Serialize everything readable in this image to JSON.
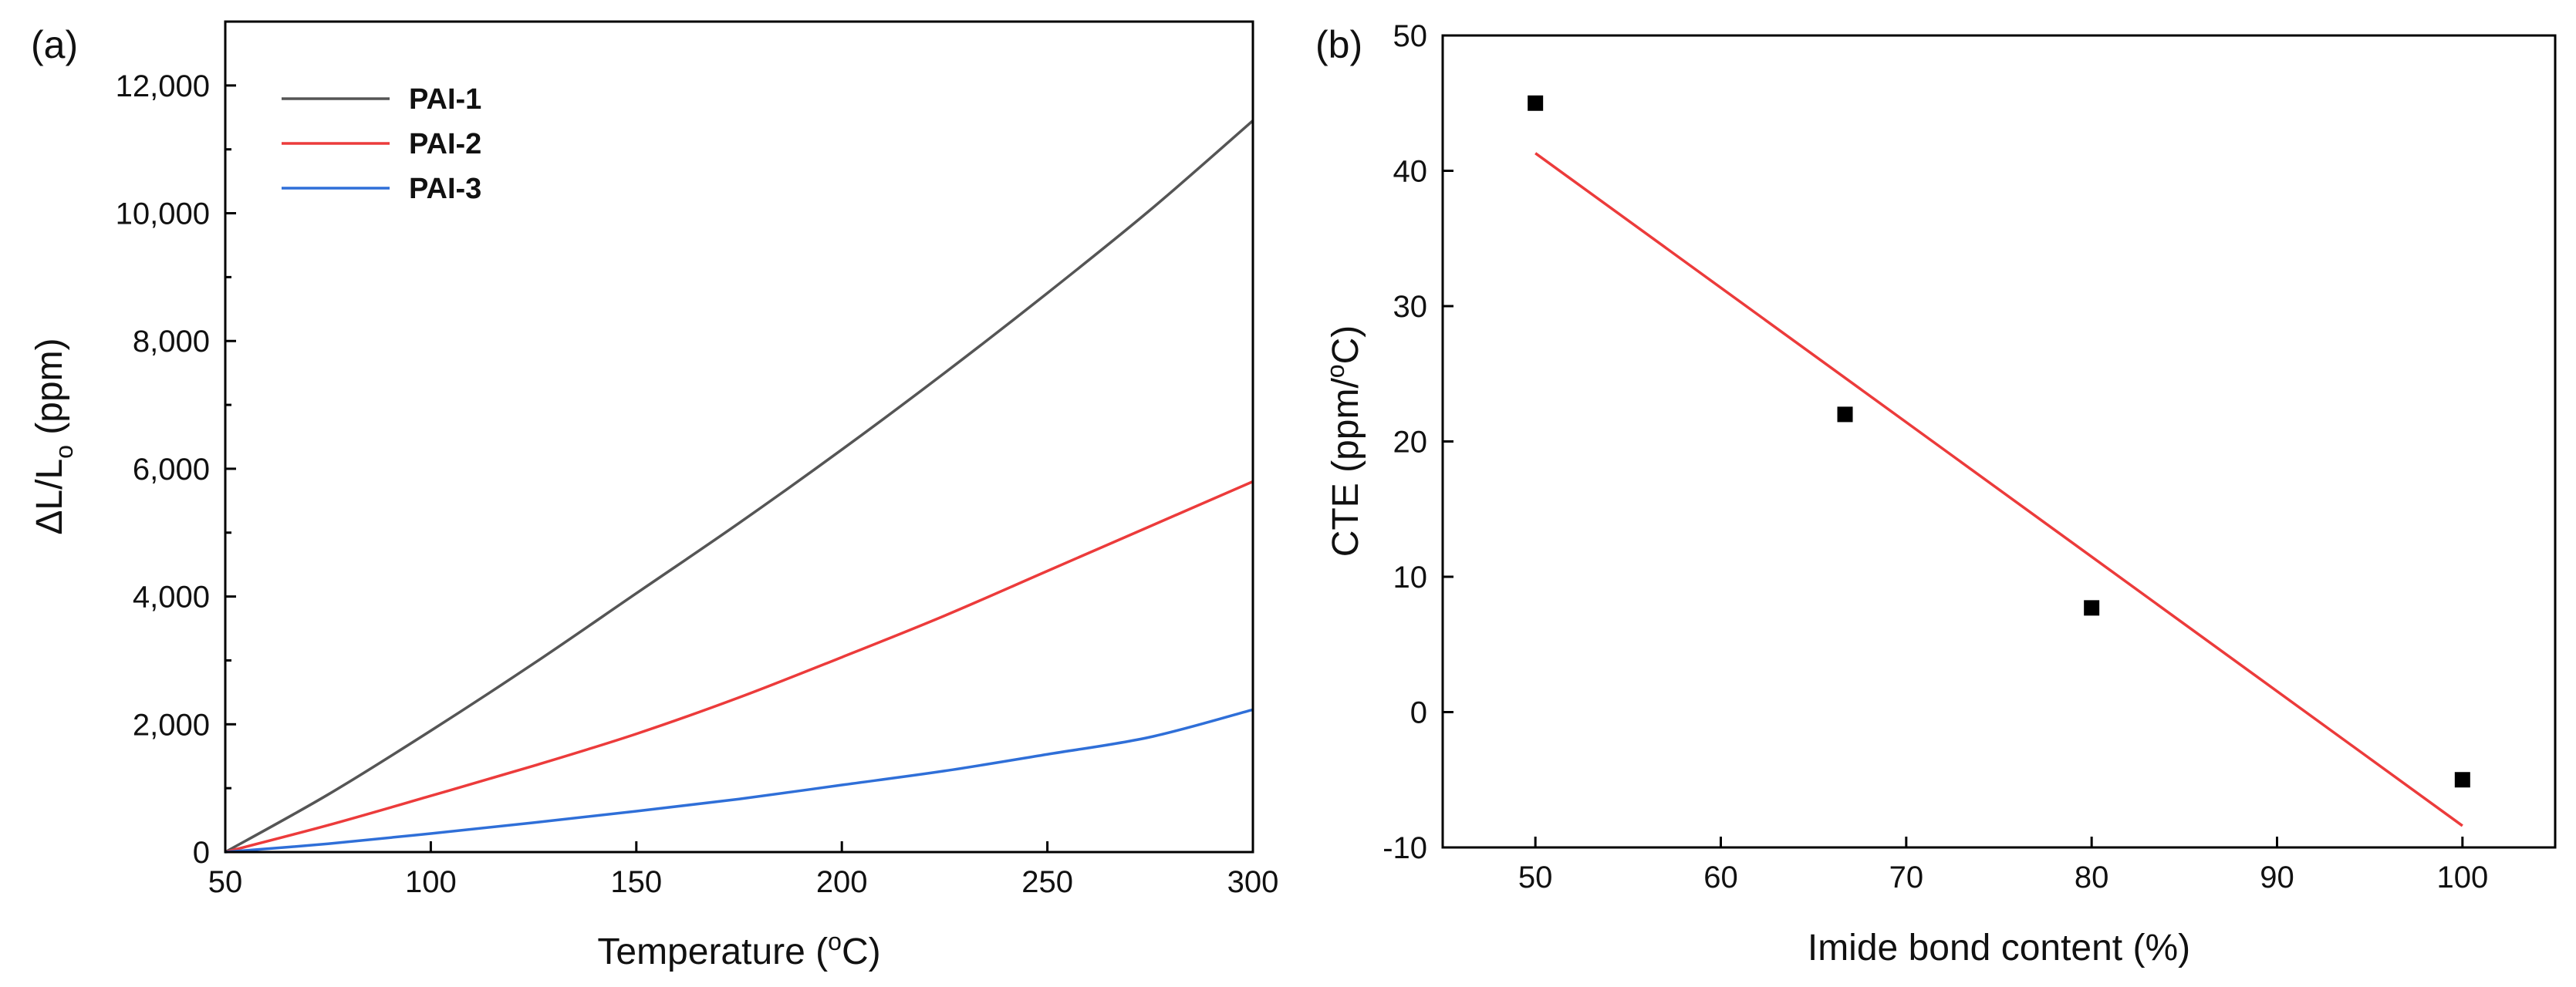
{
  "chart_data": [
    {
      "panel_label": "(a)",
      "type": "line",
      "xlabel_main": "Temperature (",
      "xlabel_sup": "o",
      "xlabel_end": "C)",
      "ylabel_pre": "ΔL/L",
      "ylabel_sub": "o",
      "ylabel_post": " (ppm)",
      "xlim": [
        50,
        300
      ],
      "ylim": [
        0,
        13000
      ],
      "xticks": [
        50,
        100,
        150,
        200,
        250,
        300
      ],
      "xtick_labels": [
        "50",
        "100",
        "150",
        "200",
        "250",
        "300"
      ],
      "yticks": [
        0,
        2000,
        4000,
        6000,
        8000,
        10000,
        12000
      ],
      "ytick_labels": [
        "0",
        "2,000",
        "4,000",
        "6,000",
        "8,000",
        "10,000",
        "12,000"
      ],
      "legend_position": "top-left",
      "x": [
        50,
        75,
        100,
        125,
        150,
        175,
        200,
        225,
        250,
        275,
        300
      ],
      "series": [
        {
          "name": "PAI-1",
          "color": "#555555",
          "values": [
            0,
            900,
            1900,
            2950,
            4050,
            5150,
            6300,
            7500,
            8750,
            10050,
            11450
          ]
        },
        {
          "name": "PAI-2",
          "color": "#ec3b3b",
          "values": [
            0,
            420,
            880,
            1350,
            1850,
            2420,
            3050,
            3700,
            4400,
            5100,
            5800
          ]
        },
        {
          "name": "PAI-3",
          "color": "#2f6fd8",
          "values": [
            0,
            130,
            290,
            460,
            640,
            830,
            1050,
            1270,
            1530,
            1800,
            2230
          ]
        }
      ]
    },
    {
      "panel_label": "(b)",
      "type": "scatter",
      "xlabel": "Imide bond content (%)",
      "ylabel_pre": "CTE (ppm/",
      "ylabel_sup": "o",
      "ylabel_post": "C)",
      "xlim": [
        45,
        105
      ],
      "ylim": [
        -10,
        50
      ],
      "xticks": [
        50,
        60,
        70,
        80,
        90,
        100
      ],
      "xtick_labels": [
        "50",
        "60",
        "70",
        "80",
        "90",
        "100"
      ],
      "yticks": [
        -10,
        0,
        10,
        20,
        30,
        40,
        50
      ],
      "ytick_labels": [
        "-10",
        "0",
        "10",
        "20",
        "30",
        "40",
        "50"
      ],
      "points": {
        "x": [
          50,
          66.7,
          80,
          100
        ],
        "y": [
          45,
          22,
          7.7,
          -5
        ]
      },
      "marker_color": "#000000",
      "fit_line": {
        "x": [
          50,
          100
        ],
        "y": [
          41.3,
          -8.4
        ],
        "color": "#ec3b3b"
      }
    }
  ]
}
